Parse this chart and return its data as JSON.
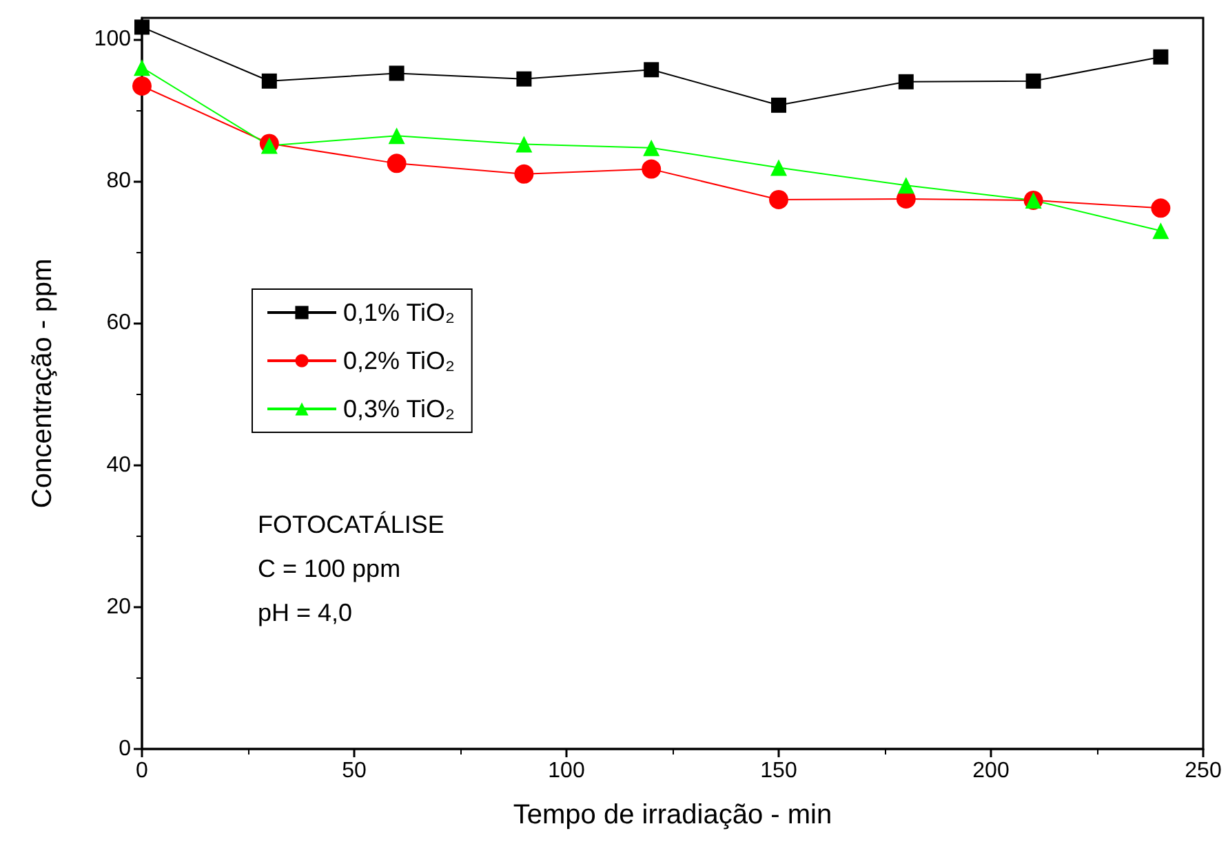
{
  "chart_data": {
    "type": "line",
    "xlabel": "Tempo de irradiação - min",
    "ylabel": "Concentração - ppm",
    "x": [
      0,
      30,
      60,
      90,
      120,
      150,
      180,
      210,
      240
    ],
    "series": [
      {
        "name": "0,1% TiO₂",
        "color": "#000000",
        "marker": "square",
        "values": [
          101.7,
          94.1,
          95.2,
          94.4,
          95.7,
          90.7,
          94.0,
          94.1,
          97.5
        ]
      },
      {
        "name": "0,2% TiO₂",
        "color": "#ff0000",
        "marker": "circle",
        "values": [
          93.4,
          85.3,
          82.5,
          81.0,
          81.7,
          77.4,
          77.5,
          77.3,
          76.2
        ]
      },
      {
        "name": "0,3% TiO₂",
        "color": "#00ff00",
        "marker": "triangle",
        "values": [
          96.0,
          85.0,
          86.4,
          85.2,
          84.7,
          81.9,
          79.4,
          77.3,
          73.0
        ]
      }
    ],
    "annotations": [
      "FOTOCATÁLISE",
      "C = 100 ppm",
      "pH = 4,0"
    ],
    "xlim": [
      0,
      250
    ],
    "xticks": [
      0,
      50,
      100,
      150,
      200,
      250
    ],
    "ylim": [
      0,
      103
    ],
    "yticks": [
      0,
      20,
      40,
      60,
      80,
      100
    ],
    "grid": false,
    "legend": "center left",
    "line_style": "solid"
  }
}
